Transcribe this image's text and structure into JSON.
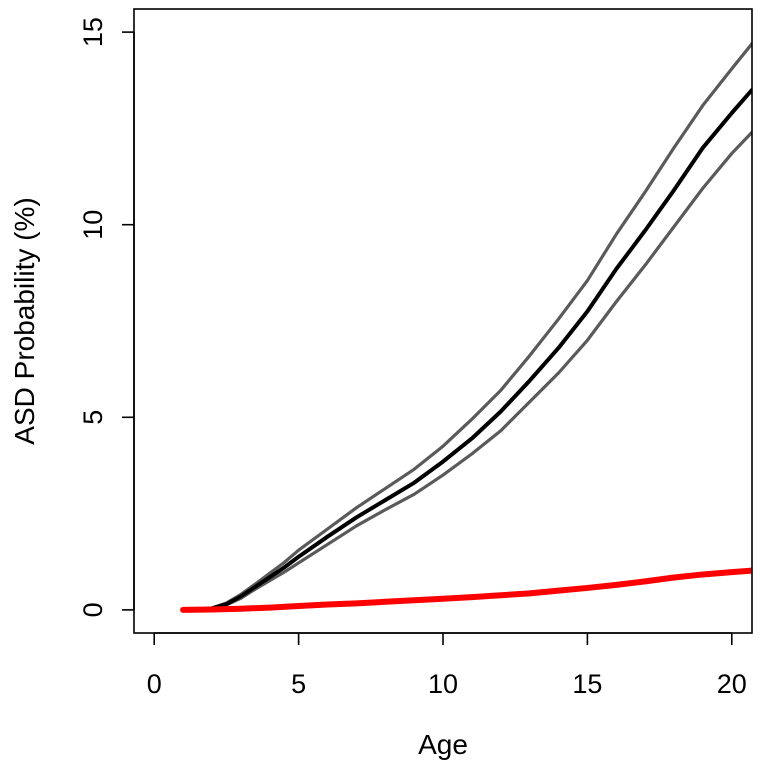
{
  "chart_data": {
    "type": "line",
    "xlabel": "Age",
    "ylabel": "ASD Probability (%)",
    "xlim": [
      -0.7,
      20.7
    ],
    "ylim": [
      -0.6,
      15.6
    ],
    "x_ticks": [
      0,
      5,
      10,
      15,
      20
    ],
    "y_ticks": [
      0,
      5,
      10,
      15
    ],
    "grid": false,
    "series": [
      {
        "role": "estimate",
        "color": "#000000",
        "points": [
          [
            1,
            0
          ],
          [
            1.5,
            0.01
          ],
          [
            2,
            0.04
          ],
          [
            2.5,
            0.15
          ],
          [
            3,
            0.35
          ],
          [
            3.5,
            0.6
          ],
          [
            4,
            0.85
          ],
          [
            4.5,
            1.1
          ],
          [
            5,
            1.38
          ],
          [
            6,
            1.9
          ],
          [
            7,
            2.4
          ],
          [
            8,
            2.85
          ],
          [
            9,
            3.3
          ],
          [
            10,
            3.85
          ],
          [
            11,
            4.45
          ],
          [
            12,
            5.15
          ],
          [
            13,
            5.95
          ],
          [
            14,
            6.8
          ],
          [
            15,
            7.75
          ],
          [
            16,
            8.85
          ],
          [
            17,
            9.85
          ],
          [
            18,
            10.9
          ],
          [
            19,
            12.0
          ],
          [
            20,
            12.9
          ],
          [
            20.7,
            13.5
          ]
        ]
      },
      {
        "role": "upper-bound",
        "color": "#5a5a5a",
        "points": [
          [
            1,
            0
          ],
          [
            1.5,
            0.01
          ],
          [
            2,
            0.05
          ],
          [
            2.5,
            0.18
          ],
          [
            3,
            0.4
          ],
          [
            3.5,
            0.67
          ],
          [
            4,
            0.95
          ],
          [
            4.5,
            1.23
          ],
          [
            5,
            1.55
          ],
          [
            6,
            2.1
          ],
          [
            7,
            2.65
          ],
          [
            8,
            3.15
          ],
          [
            9,
            3.65
          ],
          [
            10,
            4.25
          ],
          [
            11,
            4.95
          ],
          [
            12,
            5.7
          ],
          [
            13,
            6.6
          ],
          [
            14,
            7.55
          ],
          [
            15,
            8.55
          ],
          [
            16,
            9.75
          ],
          [
            17,
            10.85
          ],
          [
            18,
            12.0
          ],
          [
            19,
            13.1
          ],
          [
            20,
            14.05
          ],
          [
            20.7,
            14.7
          ]
        ]
      },
      {
        "role": "lower-bound",
        "color": "#5a5a5a",
        "points": [
          [
            1,
            0
          ],
          [
            1.5,
            0.01
          ],
          [
            2,
            0.03
          ],
          [
            2.5,
            0.13
          ],
          [
            3,
            0.3
          ],
          [
            3.5,
            0.54
          ],
          [
            4,
            0.76
          ],
          [
            4.5,
            0.98
          ],
          [
            5,
            1.22
          ],
          [
            6,
            1.7
          ],
          [
            7,
            2.18
          ],
          [
            8,
            2.6
          ],
          [
            9,
            3.0
          ],
          [
            10,
            3.5
          ],
          [
            11,
            4.05
          ],
          [
            12,
            4.65
          ],
          [
            13,
            5.4
          ],
          [
            14,
            6.15
          ],
          [
            15,
            7.0
          ],
          [
            16,
            8.0
          ],
          [
            17,
            8.95
          ],
          [
            18,
            9.95
          ],
          [
            19,
            10.95
          ],
          [
            20,
            11.85
          ],
          [
            20.7,
            12.4
          ]
        ]
      },
      {
        "role": "baseline",
        "color": "#ff0000",
        "points": [
          [
            1,
            0
          ],
          [
            2,
            0.01
          ],
          [
            3,
            0.03
          ],
          [
            4,
            0.06
          ],
          [
            5,
            0.1
          ],
          [
            6,
            0.14
          ],
          [
            7,
            0.17
          ],
          [
            8,
            0.21
          ],
          [
            9,
            0.25
          ],
          [
            10,
            0.29
          ],
          [
            11,
            0.33
          ],
          [
            12,
            0.38
          ],
          [
            13,
            0.43
          ],
          [
            14,
            0.5
          ],
          [
            15,
            0.57
          ],
          [
            16,
            0.65
          ],
          [
            17,
            0.74
          ],
          [
            18,
            0.84
          ],
          [
            19,
            0.92
          ],
          [
            20,
            0.98
          ],
          [
            20.7,
            1.02
          ]
        ]
      }
    ]
  }
}
